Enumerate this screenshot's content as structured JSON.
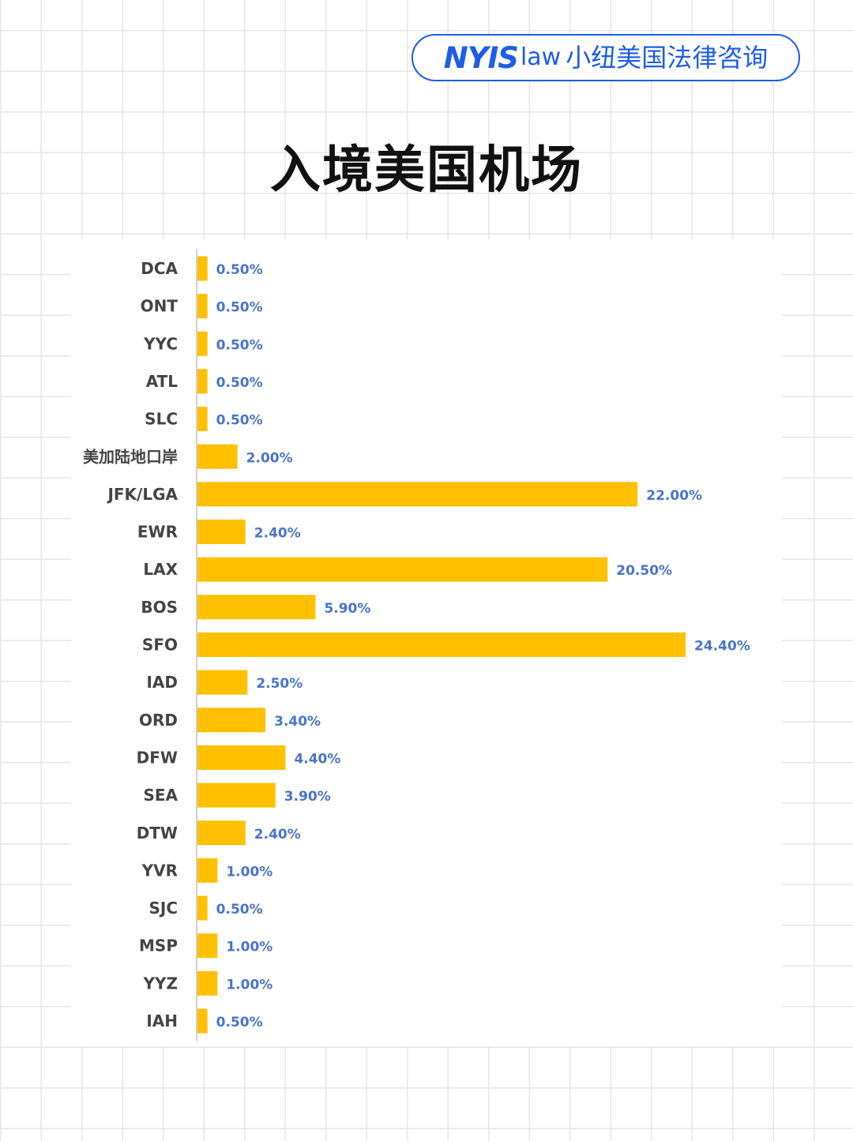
{
  "brand": {
    "mark": "NYIS",
    "suffix": "law",
    "name_cn": "小纽美国法律咨询"
  },
  "colors": {
    "brand_blue": "#1e5de6",
    "bar": "#ffc000",
    "value_label": "#4a74c9",
    "category_label": "#444444",
    "grid": "#e6e6e6"
  },
  "chart_data": {
    "type": "bar",
    "orientation": "horizontal",
    "title": "入境美国机场",
    "categories": [
      "DCA",
      "ONT",
      "YYC",
      "ATL",
      "SLC",
      "美加陆地口岸",
      "JFK/LGA",
      "EWR",
      "LAX",
      "BOS",
      "SFO",
      "IAD",
      "ORD",
      "DFW",
      "SEA",
      "DTW",
      "YVR",
      "SJC",
      "MSP",
      "YYZ",
      "IAH"
    ],
    "values": [
      0.5,
      0.5,
      0.5,
      0.5,
      0.5,
      2.0,
      22.0,
      2.4,
      20.5,
      5.9,
      24.4,
      2.5,
      3.4,
      4.4,
      3.9,
      2.4,
      1.0,
      0.5,
      1.0,
      1.0,
      0.5
    ],
    "value_labels": [
      "0.50%",
      "0.50%",
      "0.50%",
      "0.50%",
      "0.50%",
      "2.00%",
      "22.00%",
      "2.40%",
      "20.50%",
      "5.90%",
      "24.40%",
      "2.50%",
      "3.40%",
      "4.40%",
      "3.90%",
      "2.40%",
      "1.00%",
      "0.50%",
      "1.00%",
      "1.00%",
      "0.50%"
    ],
    "unit": "%",
    "xlabel": "",
    "ylabel": "",
    "grid": false,
    "legend": false
  }
}
